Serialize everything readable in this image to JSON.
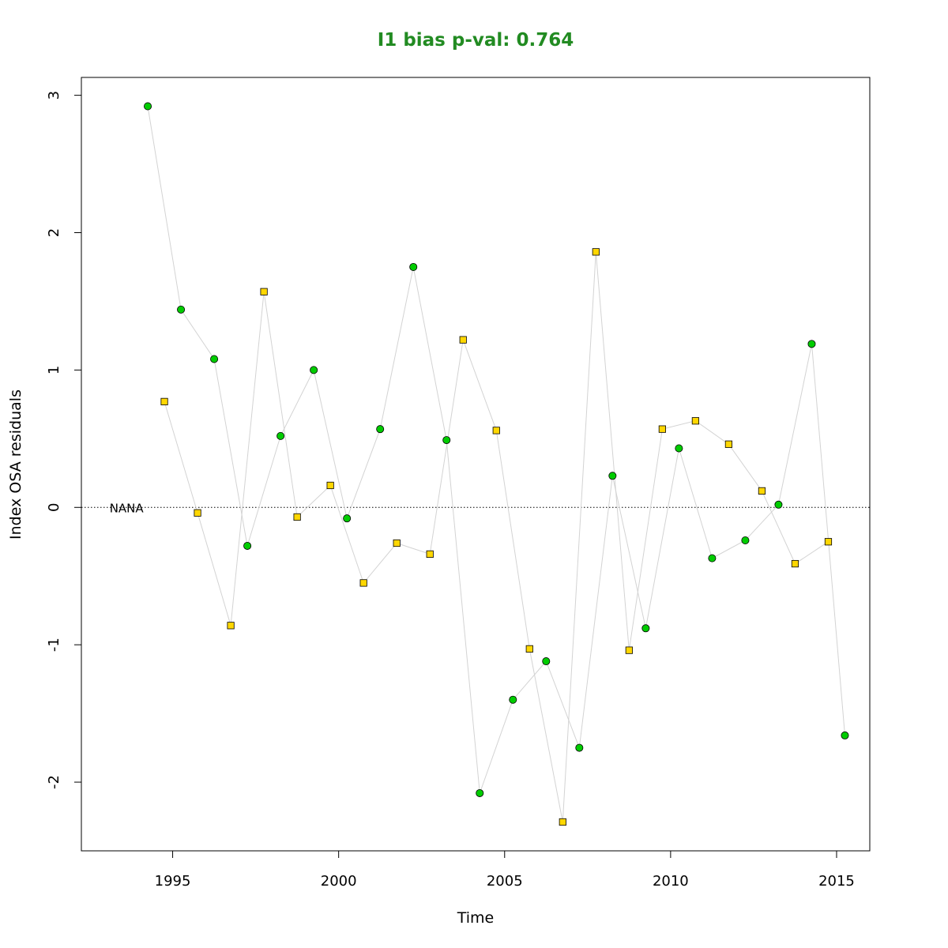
{
  "chart_data": {
    "type": "scatter",
    "title": "I1 bias p-val: 0.764",
    "title_color": "#228B22",
    "xlabel": "Time",
    "ylabel": "Index OSA residuals",
    "xlim": [
      1992.25,
      2016.0
    ],
    "ylim": [
      -2.5,
      3.13
    ],
    "xticks": [
      1995,
      2000,
      2005,
      2010,
      2015
    ],
    "yticks": [
      -2,
      -1,
      0,
      1,
      2,
      3
    ],
    "reference_line": {
      "y": 0,
      "style": "dotted"
    },
    "annotation": {
      "text": "NANA",
      "x": 1993.1,
      "y": 0
    },
    "grid": false,
    "line_color": "#d3d3d3",
    "series": [
      {
        "marker": "circle",
        "color": "#00cc00",
        "points": [
          {
            "x": 1994.25,
            "y": 2.92
          },
          {
            "x": 1995.25,
            "y": 1.44
          },
          {
            "x": 1996.25,
            "y": 1.08
          },
          {
            "x": 1997.25,
            "y": -0.28
          },
          {
            "x": 1998.25,
            "y": 0.52
          },
          {
            "x": 1999.25,
            "y": 1.0
          },
          {
            "x": 2000.25,
            "y": -0.08
          },
          {
            "x": 2001.25,
            "y": 0.57
          },
          {
            "x": 2002.25,
            "y": 1.75
          },
          {
            "x": 2003.25,
            "y": 0.49
          },
          {
            "x": 2004.25,
            "y": -2.08
          },
          {
            "x": 2005.25,
            "y": -1.4
          },
          {
            "x": 2006.25,
            "y": -1.12
          },
          {
            "x": 2007.25,
            "y": -1.75
          },
          {
            "x": 2008.25,
            "y": 0.23
          },
          {
            "x": 2009.25,
            "y": -0.88
          },
          {
            "x": 2010.25,
            "y": 0.43
          },
          {
            "x": 2011.25,
            "y": -0.37
          },
          {
            "x": 2012.25,
            "y": -0.24
          },
          {
            "x": 2013.25,
            "y": 0.02
          },
          {
            "x": 2014.25,
            "y": 1.19
          },
          {
            "x": 2015.25,
            "y": -1.66
          }
        ]
      },
      {
        "marker": "square",
        "color": "#ffd700",
        "points": [
          {
            "x": 1994.75,
            "y": 0.77
          },
          {
            "x": 1995.75,
            "y": -0.04
          },
          {
            "x": 1996.75,
            "y": -0.86
          },
          {
            "x": 1997.75,
            "y": 1.57
          },
          {
            "x": 1998.75,
            "y": -0.07
          },
          {
            "x": 1999.75,
            "y": 0.16
          },
          {
            "x": 2000.75,
            "y": -0.55
          },
          {
            "x": 2001.75,
            "y": -0.26
          },
          {
            "x": 2002.75,
            "y": -0.34
          },
          {
            "x": 2003.75,
            "y": 1.22
          },
          {
            "x": 2004.75,
            "y": 0.56
          },
          {
            "x": 2005.75,
            "y": -1.03
          },
          {
            "x": 2006.75,
            "y": -2.29
          },
          {
            "x": 2007.75,
            "y": 1.86
          },
          {
            "x": 2008.75,
            "y": -1.04
          },
          {
            "x": 2009.75,
            "y": 0.57
          },
          {
            "x": 2010.75,
            "y": 0.63
          },
          {
            "x": 2011.75,
            "y": 0.46
          },
          {
            "x": 2012.75,
            "y": 0.12
          },
          {
            "x": 2013.75,
            "y": -0.41
          },
          {
            "x": 2014.75,
            "y": -0.25
          }
        ]
      }
    ]
  }
}
